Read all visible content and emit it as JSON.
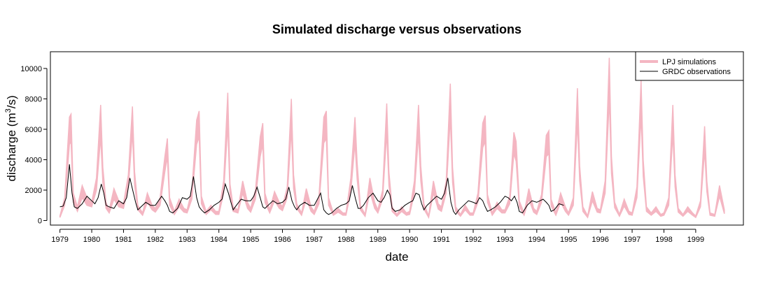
{
  "chart_data": {
    "type": "line",
    "title": "Simulated discharge versus observations",
    "xlabel": "date",
    "ylabel": "discharge (m",
    "ylabel_superscript": "3",
    "ylabel_suffix": "/s)",
    "xlim": [
      1978.7,
      2000.5
    ],
    "ylim": [
      -300,
      11100
    ],
    "yticks": [
      0,
      2000,
      4000,
      6000,
      8000,
      10000
    ],
    "xticks": [
      1979,
      1980,
      1981,
      1982,
      1983,
      1984,
      1985,
      1986,
      1987,
      1988,
      1989,
      1990,
      1991,
      1992,
      1993,
      1994,
      1995,
      1996,
      1997,
      1998,
      1999
    ],
    "legend_position": "top-right",
    "series": [
      {
        "name": "LPJ simulations",
        "color": "#f4b6c2",
        "style": "band",
        "x": [
          1979.0,
          1979.15,
          1979.3,
          1979.35,
          1979.42,
          1979.55,
          1979.7,
          1979.85,
          1980.0,
          1980.15,
          1980.28,
          1980.35,
          1980.45,
          1980.55,
          1980.7,
          1980.85,
          1981.0,
          1981.15,
          1981.28,
          1981.35,
          1981.45,
          1981.6,
          1981.75,
          1981.9,
          1982.0,
          1982.15,
          1982.3,
          1982.38,
          1982.45,
          1982.6,
          1982.75,
          1982.9,
          1983.0,
          1983.15,
          1983.3,
          1983.38,
          1983.45,
          1983.6,
          1983.75,
          1983.9,
          1984.0,
          1984.15,
          1984.28,
          1984.35,
          1984.45,
          1984.6,
          1984.75,
          1984.9,
          1985.0,
          1985.15,
          1985.3,
          1985.38,
          1985.45,
          1985.6,
          1985.75,
          1985.9,
          1986.0,
          1986.15,
          1986.28,
          1986.35,
          1986.45,
          1986.6,
          1986.75,
          1986.9,
          1987.0,
          1987.15,
          1987.3,
          1987.38,
          1987.45,
          1987.6,
          1987.75,
          1987.9,
          1988.0,
          1988.15,
          1988.28,
          1988.35,
          1988.45,
          1988.6,
          1988.75,
          1988.9,
          1989.0,
          1989.15,
          1989.28,
          1989.35,
          1989.45,
          1989.6,
          1989.75,
          1989.9,
          1990.0,
          1990.15,
          1990.28,
          1990.35,
          1990.45,
          1990.6,
          1990.75,
          1990.9,
          1991.0,
          1991.15,
          1991.28,
          1991.35,
          1991.45,
          1991.6,
          1991.75,
          1991.9,
          1992.0,
          1992.15,
          1992.3,
          1992.38,
          1992.45,
          1992.6,
          1992.75,
          1992.9,
          1993.0,
          1993.15,
          1993.28,
          1993.35,
          1993.45,
          1993.6,
          1993.75,
          1993.9,
          1994.0,
          1994.15,
          1994.3,
          1994.38,
          1994.45,
          1994.6,
          1994.75,
          1994.9,
          1995.0,
          1995.15,
          1995.28,
          1995.35,
          1995.45,
          1995.6,
          1995.75,
          1995.9,
          1996.0,
          1996.15,
          1996.28,
          1996.35,
          1996.45,
          1996.6,
          1996.75,
          1996.9,
          1997.0,
          1997.15,
          1997.28,
          1997.35,
          1997.45,
          1997.6,
          1997.75,
          1997.9,
          1998.0,
          1998.15,
          1998.28,
          1998.35,
          1998.45,
          1998.6,
          1998.75,
          1998.9,
          1999.0,
          1999.15,
          1999.28,
          1999.35,
          1999.45,
          1999.6,
          1999.75,
          1999.9
        ],
        "upper": [
          300,
          1500,
          6800,
          7000,
          1800,
          900,
          2300,
          1500,
          1200,
          2800,
          7600,
          3500,
          1200,
          700,
          2100,
          1300,
          1100,
          3000,
          7500,
          3200,
          1000,
          500,
          1800,
          1000,
          800,
          1500,
          4200,
          5400,
          1500,
          600,
          1400,
          800,
          700,
          2000,
          6600,
          7200,
          1600,
          600,
          1000,
          600,
          600,
          2600,
          8400,
          2400,
          900,
          700,
          2600,
          1200,
          800,
          2000,
          5500,
          6400,
          1800,
          700,
          1900,
          1200,
          900,
          2200,
          8000,
          3000,
          1100,
          500,
          2100,
          900,
          600,
          1600,
          6800,
          7200,
          1500,
          500,
          800,
          500,
          500,
          2800,
          6800,
          3800,
          1000,
          400,
          2800,
          1200,
          700,
          2000,
          7700,
          3200,
          900,
          400,
          900,
          500,
          600,
          2600,
          7600,
          3600,
          1100,
          300,
          2600,
          1100,
          900,
          2600,
          9000,
          3500,
          900,
          400,
          1000,
          500,
          500,
          1800,
          6400,
          6900,
          1700,
          500,
          1200,
          700,
          700,
          1600,
          5800,
          5200,
          1300,
          500,
          2100,
          800,
          600,
          1700,
          5600,
          5900,
          1400,
          500,
          1800,
          900,
          500,
          1500,
          8700,
          3600,
          900,
          300,
          1900,
          800,
          700,
          2600,
          10700,
          4200,
          1200,
          400,
          1400,
          600,
          500,
          2200,
          9200,
          4000,
          900,
          500,
          900,
          400,
          500,
          1500,
          7600,
          3000,
          800,
          400,
          900,
          500,
          300,
          1300,
          6200,
          2600,
          500,
          400,
          2300,
          700
        ],
        "lower": [
          200,
          1000,
          5000,
          5200,
          1200,
          600,
          1500,
          1000,
          900,
          2000,
          5500,
          2500,
          800,
          500,
          1400,
          900,
          800,
          2200,
          5800,
          2300,
          700,
          350,
          1200,
          700,
          550,
          1000,
          3200,
          4200,
          1000,
          400,
          900,
          550,
          500,
          1400,
          5000,
          5500,
          1100,
          400,
          700,
          400,
          400,
          1800,
          6300,
          1700,
          600,
          500,
          1800,
          800,
          550,
          1400,
          4200,
          5000,
          1200,
          500,
          1300,
          800,
          650,
          1500,
          6000,
          2100,
          800,
          350,
          1400,
          600,
          400,
          1100,
          5100,
          5400,
          1000,
          350,
          550,
          350,
          350,
          1900,
          5100,
          2700,
          700,
          280,
          1900,
          800,
          500,
          1400,
          5800,
          2300,
          600,
          280,
          600,
          350,
          400,
          1800,
          5700,
          2600,
          750,
          200,
          1800,
          750,
          600,
          1800,
          6800,
          2500,
          600,
          280,
          700,
          350,
          350,
          1200,
          4800,
          5200,
          1200,
          350,
          800,
          500,
          500,
          1100,
          4400,
          3900,
          900,
          350,
          1400,
          550,
          400,
          1200,
          4200,
          4400,
          950,
          350,
          1200,
          600,
          350,
          1000,
          6500,
          2600,
          600,
          200,
          1300,
          550,
          500,
          1800,
          8000,
          3100,
          850,
          280,
          950,
          400,
          350,
          1500,
          6900,
          2900,
          600,
          350,
          600,
          280,
          350,
          1000,
          5700,
          2200,
          550,
          280,
          600,
          350,
          200,
          900,
          4600,
          1900,
          350,
          280,
          1600,
          450
        ]
      },
      {
        "name": "GRDC observations",
        "color": "#000000",
        "style": "line",
        "x": [
          1979.0,
          1979.1,
          1979.2,
          1979.3,
          1979.38,
          1979.45,
          1979.55,
          1979.7,
          1979.85,
          1980.0,
          1980.1,
          1980.2,
          1980.3,
          1980.38,
          1980.45,
          1980.55,
          1980.7,
          1980.85,
          1981.0,
          1981.1,
          1981.2,
          1981.3,
          1981.38,
          1981.45,
          1981.55,
          1981.7,
          1981.85,
          1982.0,
          1982.1,
          1982.2,
          1982.3,
          1982.38,
          1982.45,
          1982.55,
          1982.7,
          1982.85,
          1983.0,
          1983.1,
          1983.2,
          1983.3,
          1983.38,
          1983.45,
          1983.55,
          1983.7,
          1983.85,
          1984.0,
          1984.1,
          1984.2,
          1984.3,
          1984.38,
          1984.45,
          1984.55,
          1984.7,
          1984.85,
          1985.0,
          1985.1,
          1985.2,
          1985.3,
          1985.38,
          1985.45,
          1985.55,
          1985.7,
          1985.85,
          1986.0,
          1986.1,
          1986.2,
          1986.3,
          1986.38,
          1986.45,
          1986.55,
          1986.7,
          1986.85,
          1987.0,
          1987.1,
          1987.2,
          1987.3,
          1987.38,
          1987.45,
          1987.55,
          1987.7,
          1987.85,
          1988.0,
          1988.1,
          1988.2,
          1988.3,
          1988.38,
          1988.45,
          1988.55,
          1988.7,
          1988.85,
          1989.0,
          1989.1,
          1989.2,
          1989.3,
          1989.38,
          1989.45,
          1989.55,
          1989.7,
          1989.85,
          1990.0,
          1990.1,
          1990.2,
          1990.3,
          1990.38,
          1990.45,
          1990.55,
          1990.7,
          1990.85,
          1991.0,
          1991.1,
          1991.2,
          1991.3,
          1991.38,
          1991.45,
          1991.55,
          1991.7,
          1991.85,
          1992.0,
          1992.1,
          1992.2,
          1992.3,
          1992.38,
          1992.45,
          1992.55,
          1992.7,
          1992.85,
          1993.0,
          1993.1,
          1993.2,
          1993.3,
          1993.38,
          1993.45,
          1993.55,
          1993.7,
          1993.85,
          1994.0,
          1994.1,
          1994.2,
          1994.3,
          1994.38,
          1994.45,
          1994.55,
          1994.7,
          1994.85
        ],
        "values": [
          900,
          950,
          1500,
          3700,
          1800,
          900,
          800,
          1100,
          1600,
          1300,
          1100,
          1500,
          2400,
          1800,
          1000,
          900,
          800,
          1300,
          1100,
          1500,
          2800,
          1900,
          1200,
          700,
          900,
          1200,
          1000,
          1000,
          1300,
          1600,
          1300,
          1000,
          600,
          500,
          800,
          1500,
          1400,
          1600,
          2900,
          1500,
          900,
          700,
          500,
          700,
          1000,
          1200,
          1400,
          2400,
          1800,
          1200,
          700,
          1000,
          1400,
          1300,
          1300,
          1600,
          2200,
          1500,
          900,
          800,
          1000,
          1300,
          1100,
          1200,
          1400,
          2200,
          1300,
          900,
          700,
          1000,
          1200,
          1000,
          1000,
          1400,
          1800,
          700,
          500,
          400,
          500,
          800,
          1000,
          1100,
          1300,
          2300,
          1400,
          800,
          800,
          1000,
          1500,
          1800,
          1300,
          1200,
          1500,
          2000,
          1700,
          800,
          600,
          700,
          1000,
          1200,
          1300,
          1800,
          1700,
          1100,
          700,
          1000,
          1300,
          1600,
          1400,
          1800,
          2800,
          1200,
          600,
          400,
          700,
          1000,
          1300,
          1200,
          1100,
          1500,
          1300,
          900,
          600,
          700,
          900,
          1200,
          1600,
          1500,
          1300,
          1600,
          1200,
          600,
          500,
          1000,
          1300,
          1200,
          1300,
          1400,
          1200,
          1000,
          600,
          700,
          1100,
          1000
        ]
      }
    ]
  }
}
